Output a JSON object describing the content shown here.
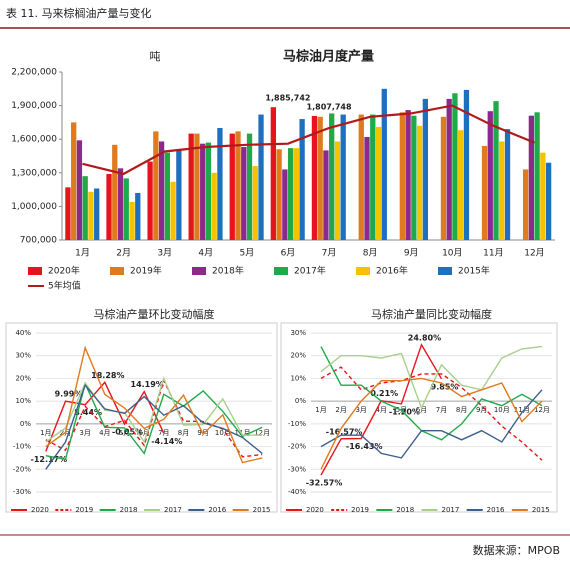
{
  "header": {
    "title": "表 11.   马来棕榈油产量与变化"
  },
  "footer": {
    "source": "数据来源：MPOB"
  },
  "chart_data": [
    {
      "type": "bar",
      "title": "马棕油月度产量",
      "y_label": "吨",
      "categories": [
        "1月",
        "2月",
        "3月",
        "4月",
        "5月",
        "6月",
        "7月",
        "8月",
        "9月",
        "10月",
        "11月",
        "12月"
      ],
      "ylim": [
        700000,
        2200000
      ],
      "yticks": [
        {
          "value": 700000,
          "label": "700,000"
        },
        {
          "value": 1000000,
          "label": "1,000,000"
        },
        {
          "value": 1300000,
          "label": "1,300,000"
        },
        {
          "value": 1600000,
          "label": "1,600,000"
        },
        {
          "value": 1900000,
          "label": "1,900,000"
        },
        {
          "value": 2200000,
          "label": "2,200,000"
        }
      ],
      "grid": false,
      "series": [
        {
          "name": "2020年",
          "color": "#e8141b",
          "values": [
            1170000,
            1290000,
            1400000,
            1650000,
            1650000,
            1885742,
            1807748,
            null,
            null,
            null,
            null,
            null
          ],
          "value_labels": [
            null,
            null,
            null,
            null,
            null,
            "1,885,742",
            "1,807,748",
            null,
            null,
            null,
            null,
            null
          ]
        },
        {
          "name": "2019年",
          "color": "#e07a1f",
          "values": [
            1750000,
            1550000,
            1670000,
            1650000,
            1670000,
            1510000,
            1800000,
            1820000,
            1840000,
            1800000,
            1540000,
            1330000
          ]
        },
        {
          "name": "2018年",
          "color": "#8b2a8c",
          "values": [
            1590000,
            1340000,
            1580000,
            1560000,
            1530000,
            1330000,
            1500000,
            1620000,
            1860000,
            1960000,
            1850000,
            1810000
          ]
        },
        {
          "name": "2017年",
          "color": "#1faa4a",
          "values": [
            1270000,
            1250000,
            1480000,
            1570000,
            1650000,
            1520000,
            1830000,
            1820000,
            1810000,
            2010000,
            1940000,
            1840000
          ]
        },
        {
          "name": "2016年",
          "color": "#f5c200",
          "values": [
            1130000,
            1040000,
            1220000,
            1300000,
            1360000,
            1520000,
            1580000,
            1710000,
            1720000,
            1680000,
            1580000,
            1480000
          ]
        },
        {
          "name": "2015年",
          "color": "#1f6fbf",
          "values": [
            1160000,
            1120000,
            1500000,
            1700000,
            1820000,
            1780000,
            1820000,
            2050000,
            1960000,
            2040000,
            1690000,
            1390000
          ]
        },
        {
          "name": "5年均值",
          "color": "#b01a1a",
          "type": "line",
          "values": [
            1380000,
            1290000,
            1490000,
            1530000,
            1550000,
            1560000,
            1700000,
            1800000,
            1830000,
            1900000,
            1720000,
            1570000
          ]
        }
      ]
    },
    {
      "type": "line",
      "title": "马棕油产量环比变动幅度",
      "categories": [
        "1月",
        "2月",
        "3月",
        "4月",
        "5月",
        "6月",
        "7月",
        "8月",
        "9月",
        "10月",
        "11月",
        "12月"
      ],
      "ylim": [
        -30,
        40
      ],
      "yticks": [
        {
          "value": -30,
          "label": "-30%"
        },
        {
          "value": -20,
          "label": "-20%"
        },
        {
          "value": -10,
          "label": "-10%"
        },
        {
          "value": 0,
          "label": "0%"
        },
        {
          "value": 10,
          "label": "10%"
        },
        {
          "value": 20,
          "label": "20%"
        },
        {
          "value": 30,
          "label": "30%"
        },
        {
          "value": 40,
          "label": "40%"
        }
      ],
      "grid": true,
      "series": [
        {
          "name": "2020",
          "color": "#e8141b",
          "values": [
            -12.17,
            9.99,
            8.44,
            18.28,
            -0.05,
            14.19,
            -4.14,
            null,
            null,
            null,
            null,
            null
          ],
          "value_labels": [
            "-12.17%",
            "9.99%",
            "8.44%",
            "18.28%",
            "-0.05%",
            "14.19%",
            "-4.14%",
            null,
            null,
            null,
            null,
            null
          ]
        },
        {
          "name": "2019",
          "color": "#e8141b",
          "dash": true,
          "values": [
            -7,
            -11.6,
            7.7,
            -1.2,
            1.5,
            -9.5,
            19,
            1.2,
            1,
            -2.3,
            -14.5,
            -13.5
          ]
        },
        {
          "name": "2018",
          "color": "#1faa4a",
          "values": [
            -14,
            -15.6,
            17.7,
            -1.5,
            -1.8,
            -13,
            13,
            7.8,
            14.5,
            5.5,
            -5.5,
            -1.5
          ]
        },
        {
          "name": "2017",
          "color": "#a9cf8c",
          "values": [
            -8,
            -1.8,
            18,
            6,
            5,
            -8,
            20,
            -0.5,
            -0.3,
            11,
            -5,
            -5
          ]
        },
        {
          "name": "2016",
          "color": "#3d5f8c",
          "values": [
            -20,
            -8,
            17,
            6.6,
            4.6,
            12,
            3.8,
            8,
            0.4,
            -2,
            -6,
            -13
          ]
        },
        {
          "name": "2015",
          "color": "#e07a1f",
          "values": [
            -10,
            -3.7,
            33.5,
            13,
            7,
            -2,
            2,
            12.6,
            -4.5,
            4,
            -17,
            -15
          ]
        }
      ]
    },
    {
      "type": "line",
      "title": "马棕油产量同比变动幅度",
      "categories": [
        "1月",
        "2月",
        "3月",
        "4月",
        "5月",
        "6月",
        "7月",
        "8月",
        "9月",
        "10月",
        "11月",
        "12月"
      ],
      "ylim": [
        -40,
        30
      ],
      "yticks": [
        {
          "value": -40,
          "label": "-40%"
        },
        {
          "value": -30,
          "label": "-30%"
        },
        {
          "value": -20,
          "label": "-20%"
        },
        {
          "value": -10,
          "label": "-10%"
        },
        {
          "value": 0,
          "label": "0%"
        },
        {
          "value": 10,
          "label": "10%"
        },
        {
          "value": 20,
          "label": "20%"
        },
        {
          "value": 30,
          "label": "30%"
        }
      ],
      "grid": true,
      "series": [
        {
          "name": "2020",
          "color": "#e8141b",
          "values": [
            -32.57,
            -16.57,
            -16.43,
            0.21,
            -1.2,
            24.8,
            9.85,
            null,
            null,
            null,
            null,
            null
          ],
          "value_labels": [
            "-32.57%",
            "-16.57%",
            "-16.43%",
            "0.21%",
            "-1.20%",
            "24.80%",
            "9.85%",
            null,
            null,
            null,
            null,
            null
          ]
        },
        {
          "name": "2019",
          "color": "#e8141b",
          "dash": true,
          "values": [
            10,
            15,
            5,
            8,
            9,
            12,
            12,
            6,
            -2,
            -11,
            -18,
            -26
          ]
        },
        {
          "name": "2018",
          "color": "#1faa4a",
          "values": [
            24,
            7,
            7,
            0,
            -4,
            -13,
            -17,
            -10,
            1,
            -2,
            3,
            -2
          ]
        },
        {
          "name": "2017",
          "color": "#a9cf8c",
          "values": [
            13,
            20,
            20,
            19,
            21,
            -3,
            16,
            7,
            5,
            19,
            23,
            24
          ]
        },
        {
          "name": "2016",
          "color": "#3d5f8c",
          "values": [
            -20,
            -15,
            -15,
            -23,
            -25,
            -13,
            -13,
            -17,
            -13,
            -18,
            -5,
            5
          ]
        },
        {
          "name": "2015",
          "color": "#e07a1f",
          "values": [
            -30,
            -12,
            0,
            9,
            9,
            10,
            8,
            2,
            5,
            8,
            -9,
            0
          ]
        }
      ]
    }
  ]
}
